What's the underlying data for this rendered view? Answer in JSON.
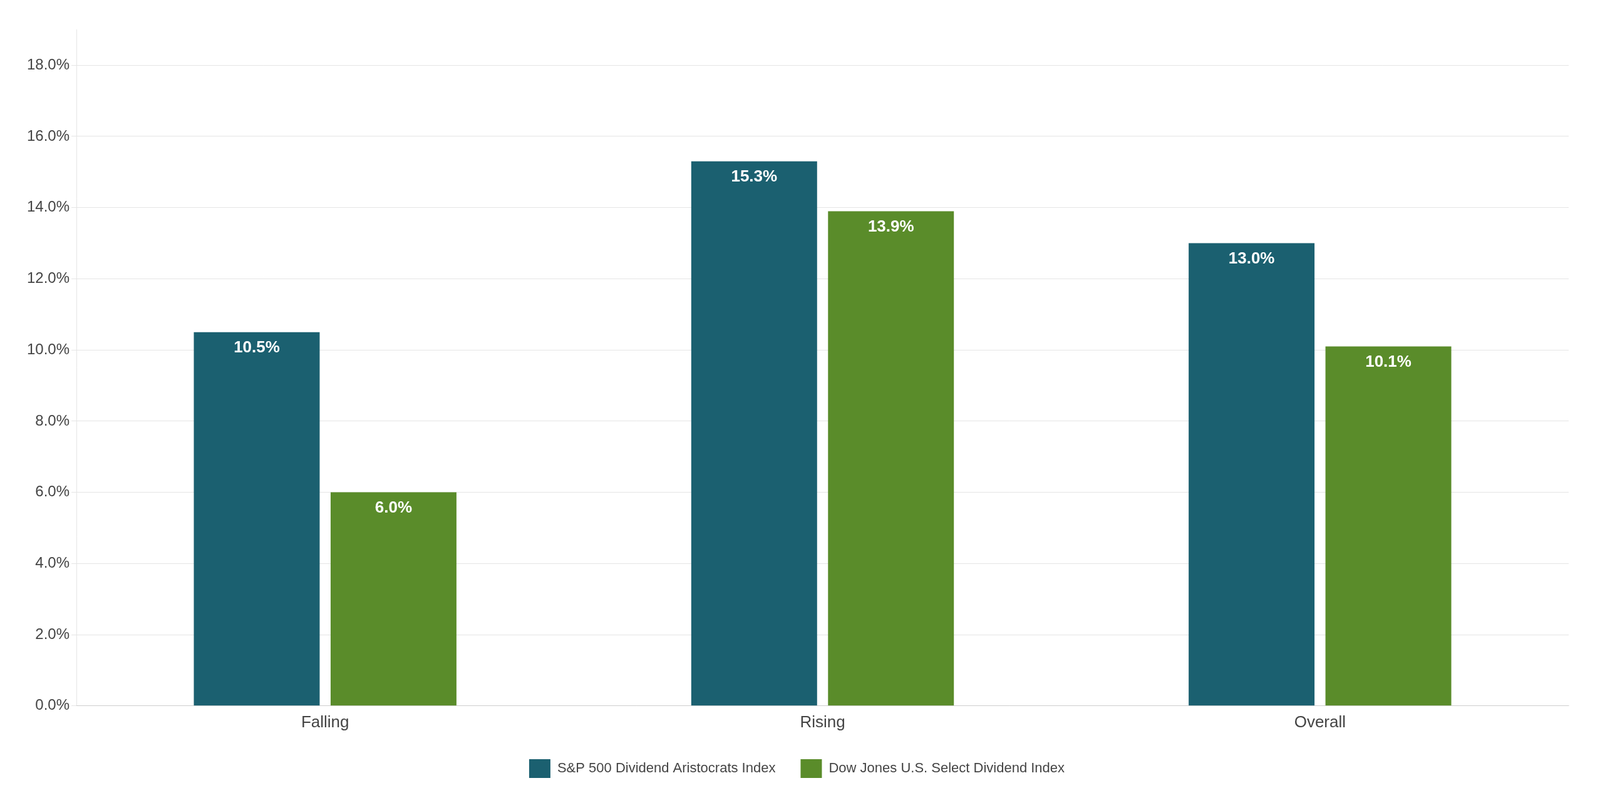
{
  "chart_data": {
    "type": "bar",
    "categories": [
      "Falling",
      "Rising",
      "Overall"
    ],
    "series": [
      {
        "name": "S&P 500 Dividend Aristocrats Index",
        "color": "#1b6070",
        "values": [
          10.5,
          15.3,
          13.0
        ],
        "value_labels": [
          "10.5%",
          "15.3%",
          "13.0%"
        ]
      },
      {
        "name": "Dow Jones U.S. Select Dividend Index",
        "color": "#5a8c2a",
        "values": [
          6.0,
          13.9,
          10.1
        ],
        "value_labels": [
          "6.0%",
          "13.9%",
          "10.1%"
        ]
      }
    ],
    "ylim": [
      0,
      19
    ],
    "yticks": [
      {
        "value": 0,
        "label": "0.0%"
      },
      {
        "value": 2,
        "label": "2.0%"
      },
      {
        "value": 4,
        "label": "4.0%"
      },
      {
        "value": 6,
        "label": "6.0%"
      },
      {
        "value": 8,
        "label": "8.0%"
      },
      {
        "value": 10,
        "label": "10.0%"
      },
      {
        "value": 12,
        "label": "12.0%"
      },
      {
        "value": 14,
        "label": "14.0%"
      },
      {
        "value": 16,
        "label": "16.0%"
      },
      {
        "value": 18,
        "label": "18.0%"
      }
    ],
    "grid": true,
    "legend": "bottom",
    "data_labels": true
  }
}
